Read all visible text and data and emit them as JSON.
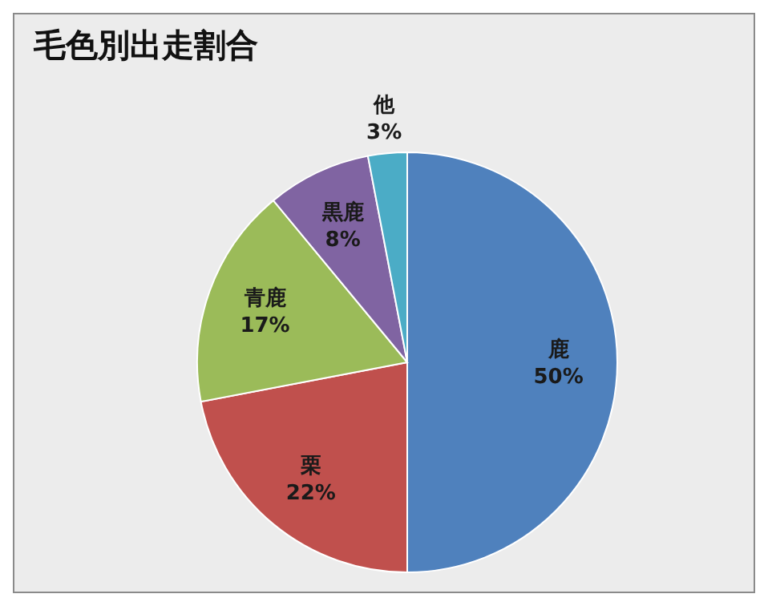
{
  "chart_data": {
    "type": "pie",
    "title": "毛色別出走割合",
    "categories": [
      "鹿",
      "栗",
      "青鹿",
      "黒鹿",
      "他"
    ],
    "values": [
      50,
      22,
      17,
      8,
      3
    ],
    "colors": [
      "#4f81bd",
      "#c0504d",
      "#9bbb59",
      "#8064a2",
      "#4bacc6"
    ],
    "value_labels": [
      "50%",
      "22%",
      "17%",
      "8%",
      "3%"
    ],
    "legend": false
  }
}
